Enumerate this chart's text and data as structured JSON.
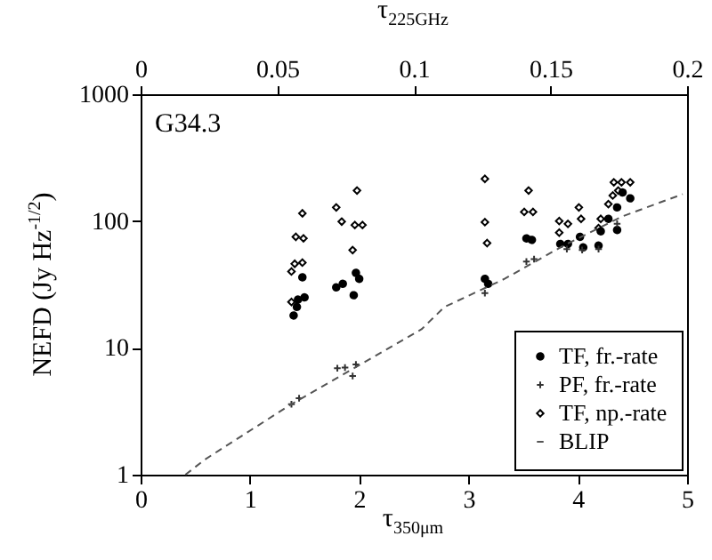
{
  "chart_data": {
    "type": "scatter",
    "xlabel": "τ$_{350μm}$",
    "x2label": "τ$_{225GHz}$",
    "ylabel": "NEFD (Jy Hz$^{-1/2}$)",
    "annotations": [
      "G34.3"
    ],
    "log": "y",
    "legend": "bottom right",
    "xlim": [
      0,
      5
    ],
    "xticks": [
      0,
      1,
      2,
      3,
      4,
      5
    ],
    "x2lim": [
      0,
      0.2
    ],
    "x2ticks": [
      0,
      0.05,
      0.1,
      0.15,
      0.2
    ],
    "ylim": [
      1,
      1000
    ],
    "yticks": [
      1,
      10,
      100,
      1000
    ],
    "series": [
      {
        "name": "TF, fr.-rate",
        "color": "#000000",
        "marker": "circle",
        "x": [
          1.48,
          1.44,
          1.5,
          1.43,
          1.4,
          1.79,
          1.85,
          1.97,
          2.0,
          1.95,
          3.15,
          3.18,
          3.53,
          3.58,
          3.84,
          3.91,
          4.02,
          4.05,
          4.19,
          4.21,
          4.28,
          4.36,
          4.41,
          4.48,
          4.36
        ],
        "values": [
          36,
          24,
          25,
          21,
          18,
          30,
          32,
          39,
          35,
          26,
          35,
          32,
          73,
          71,
          66,
          66,
          75,
          62,
          64,
          83,
          104,
          128,
          168,
          151,
          85
        ]
      },
      {
        "name": "PF, fr.-rate",
        "color": "#333333",
        "marker": "cross",
        "x": [
          1.38,
          1.45,
          1.8,
          1.87,
          1.97,
          1.94,
          3.15,
          3.53,
          3.6,
          3.9,
          4.04,
          4.19,
          4.36
        ],
        "values": [
          3.6,
          4.0,
          6.9,
          7.0,
          7.4,
          6.0,
          27,
          48,
          50,
          60,
          59,
          60,
          95
        ]
      },
      {
        "name": "TF, np.-rate",
        "color": "#000000",
        "marker": "diamond",
        "x": [
          1.48,
          1.42,
          1.49,
          1.41,
          1.48,
          1.38,
          1.38,
          1.79,
          1.98,
          1.84,
          1.96,
          2.03,
          1.94,
          3.15,
          3.15,
          3.17,
          3.55,
          3.51,
          3.59,
          3.83,
          3.91,
          3.83,
          4.01,
          4.03,
          4.21,
          4.19,
          4.28,
          4.32,
          4.33,
          4.4,
          4.48,
          4.37
        ],
        "values": [
          115,
          75,
          73,
          46,
          47,
          40,
          23,
          128,
          174,
          99,
          93,
          93,
          59,
          215,
          98,
          67,
          174,
          118,
          118,
          100,
          95,
          81,
          128,
          104,
          104,
          88,
          136,
          159,
          202,
          202,
          202,
          174
        ]
      },
      {
        "name": "BLIP",
        "type": "line",
        "color": "#555555",
        "line_style": "dashed",
        "x": [
          0.41,
          0.59,
          1.38,
          2.57,
          2.78,
          3.33,
          3.87,
          4.41,
          4.96
        ],
        "values": [
          1,
          1.32,
          3.6,
          14,
          21,
          35,
          64,
          109,
          163
        ]
      }
    ]
  }
}
